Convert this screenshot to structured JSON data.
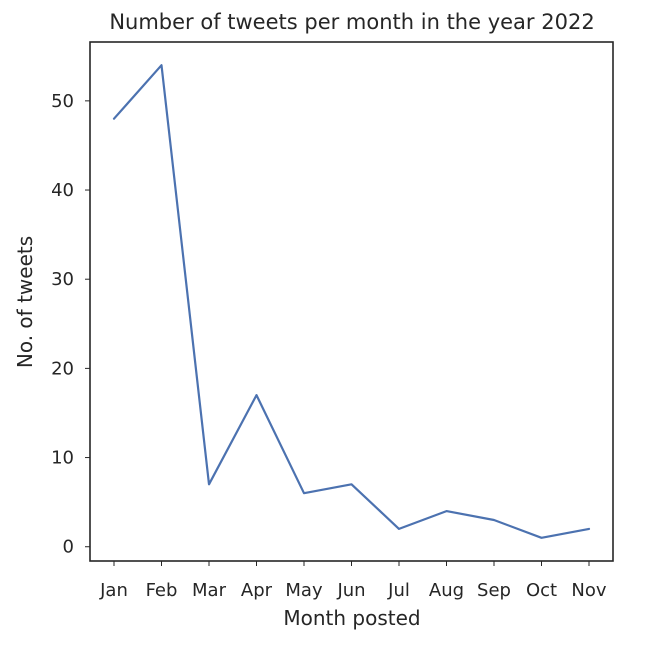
{
  "chart_data": {
    "type": "line",
    "title": "Number of tweets per month in the year 2022",
    "xlabel": "Month posted",
    "ylabel": "No. of tweets",
    "categories": [
      "Jan",
      "Feb",
      "Mar",
      "Apr",
      "May",
      "Jun",
      "Jul",
      "Aug",
      "Sep",
      "Oct",
      "Nov"
    ],
    "series": [
      {
        "name": "tweets",
        "values": [
          48,
          54,
          7,
          17,
          6,
          7,
          2,
          4,
          3,
          1,
          2
        ],
        "color": "#4c72b0"
      }
    ],
    "yticks": [
      0,
      10,
      20,
      30,
      40,
      50
    ],
    "ylim": [
      -1.6,
      56.6
    ],
    "grid": false
  }
}
